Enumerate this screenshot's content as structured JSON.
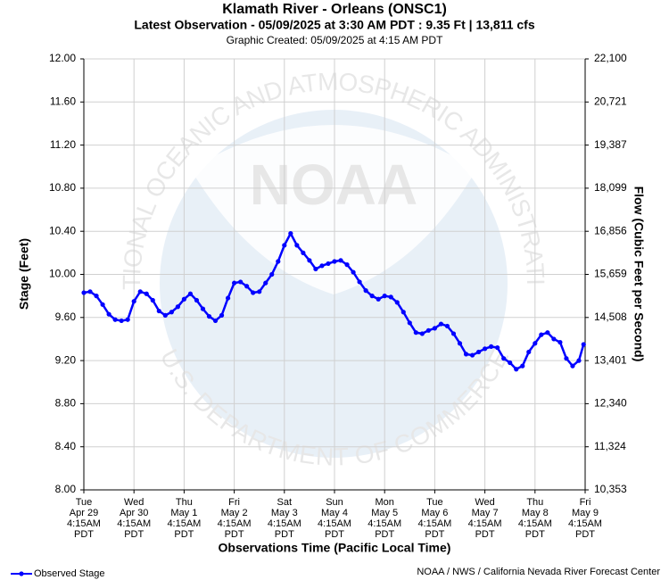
{
  "chart_data": {
    "type": "line",
    "title": "Klamath River - Orleans (ONSC1)",
    "subtitle": "Latest Observation - 05/09/2025 at 3:30 AM PDT : 9.35 Ft | 13,811 cfs",
    "created": "Graphic Created: 05/09/2025 at 4:15 AM PDT",
    "ylabel": "Stage (Feet)",
    "y2label": "Flow (Cubic Feet per Second)",
    "xlabel": "Observations Time (Pacific Local Time)",
    "credit": "NOAA / NWS / California Nevada River Forecast Center",
    "watermark": {
      "logo": "NOAA",
      "top": "NATIONAL OCEANIC AND ATMOSPHERIC ADMINISTRATION",
      "bottom": "U.S. DEPARTMENT OF COMMERCE"
    },
    "grid": true,
    "legend": "bottom-left",
    "ylim": [
      8,
      12
    ],
    "yticks": [
      {
        "value": 8,
        "label": "8.00"
      },
      {
        "value": 8.4,
        "label": "8.40"
      },
      {
        "value": 8.8,
        "label": "8.80"
      },
      {
        "value": 9.2,
        "label": "9.20"
      },
      {
        "value": 9.6,
        "label": "9.60"
      },
      {
        "value": 10,
        "label": "10.00"
      },
      {
        "value": 10.4,
        "label": "10.40"
      },
      {
        "value": 10.8,
        "label": "10.80"
      },
      {
        "value": 11.2,
        "label": "11.20"
      },
      {
        "value": 11.6,
        "label": "11.60"
      },
      {
        "value": 12,
        "label": "12.00"
      }
    ],
    "y2lim": [
      10353,
      22100
    ],
    "y2ticks": [
      {
        "value": 10353,
        "label": "10,353"
      },
      {
        "value": 11324,
        "label": "11,324"
      },
      {
        "value": 12340,
        "label": "12,340"
      },
      {
        "value": 13401,
        "label": "13,401"
      },
      {
        "value": 14508,
        "label": "14,508"
      },
      {
        "value": 15659,
        "label": "15,659"
      },
      {
        "value": 16856,
        "label": "16,856"
      },
      {
        "value": 18099,
        "label": "18,099"
      },
      {
        "value": 19387,
        "label": "19,387"
      },
      {
        "value": 20721,
        "label": "20,721"
      },
      {
        "value": 22100,
        "label": "22,100"
      }
    ],
    "xlim": [
      "2025-04-29T04:15",
      "2025-05-09T04:15"
    ],
    "xticks": [
      {
        "value": "2025-04-29T04:15",
        "label": [
          "Tue",
          "Apr 29",
          "4:15AM",
          "PDT"
        ]
      },
      {
        "value": "2025-04-30T04:15",
        "label": [
          "Wed",
          "Apr 30",
          "4:15AM",
          "PDT"
        ]
      },
      {
        "value": "2025-05-01T04:15",
        "label": [
          "Thu",
          "May 1",
          "4:15AM",
          "PDT"
        ]
      },
      {
        "value": "2025-05-02T04:15",
        "label": [
          "Fri",
          "May 2",
          "4:15AM",
          "PDT"
        ]
      },
      {
        "value": "2025-05-03T04:15",
        "label": [
          "Sat",
          "May 3",
          "4:15AM",
          "PDT"
        ]
      },
      {
        "value": "2025-05-04T04:15",
        "label": [
          "Sun",
          "May 4",
          "4:15AM",
          "PDT"
        ]
      },
      {
        "value": "2025-05-05T04:15",
        "label": [
          "Mon",
          "May 5",
          "4:15AM",
          "PDT"
        ]
      },
      {
        "value": "2025-05-06T04:15",
        "label": [
          "Tue",
          "May 6",
          "4:15AM",
          "PDT"
        ]
      },
      {
        "value": "2025-05-07T04:15",
        "label": [
          "Wed",
          "May 7",
          "4:15AM",
          "PDT"
        ]
      },
      {
        "value": "2025-05-08T04:15",
        "label": [
          "Thu",
          "May 8",
          "4:15AM",
          "PDT"
        ]
      },
      {
        "value": "2025-05-09T04:15",
        "label": [
          "Fri",
          "May 9",
          "4:15AM",
          "PDT"
        ]
      }
    ],
    "x": [
      "2025-04-29T04:15",
      "2025-04-29T07:15",
      "2025-04-29T10:15",
      "2025-04-29T13:15",
      "2025-04-29T16:15",
      "2025-04-29T19:15",
      "2025-04-29T22:15",
      "2025-04-30T01:15",
      "2025-04-30T04:15",
      "2025-04-30T07:15",
      "2025-04-30T10:15",
      "2025-04-30T13:15",
      "2025-04-30T16:15",
      "2025-04-30T19:15",
      "2025-04-30T22:15",
      "2025-05-01T01:15",
      "2025-05-01T04:15",
      "2025-05-01T07:15",
      "2025-05-01T10:15",
      "2025-05-01T13:15",
      "2025-05-01T16:15",
      "2025-05-01T19:15",
      "2025-05-01T22:15",
      "2025-05-02T01:15",
      "2025-05-02T04:15",
      "2025-05-02T07:15",
      "2025-05-02T10:15",
      "2025-05-02T13:15",
      "2025-05-02T16:15",
      "2025-05-02T19:15",
      "2025-05-02T22:15",
      "2025-05-03T01:15",
      "2025-05-03T04:15",
      "2025-05-03T07:15",
      "2025-05-03T10:15",
      "2025-05-03T13:15",
      "2025-05-03T16:15",
      "2025-05-03T19:15",
      "2025-05-03T22:15",
      "2025-05-04T01:15",
      "2025-05-04T04:15",
      "2025-05-04T07:15",
      "2025-05-04T10:15",
      "2025-05-04T13:15",
      "2025-05-04T16:15",
      "2025-05-04T19:15",
      "2025-05-04T22:15",
      "2025-05-05T01:15",
      "2025-05-05T04:15",
      "2025-05-05T07:15",
      "2025-05-05T10:15",
      "2025-05-05T13:15",
      "2025-05-05T16:15",
      "2025-05-05T19:15",
      "2025-05-05T22:15",
      "2025-05-06T01:15",
      "2025-05-06T04:15",
      "2025-05-06T07:15",
      "2025-05-06T10:15",
      "2025-05-06T13:15",
      "2025-05-06T16:15",
      "2025-05-06T19:15",
      "2025-05-06T22:15",
      "2025-05-07T01:15",
      "2025-05-07T04:15",
      "2025-05-07T07:15",
      "2025-05-07T10:15",
      "2025-05-07T13:15",
      "2025-05-07T16:15",
      "2025-05-07T19:15",
      "2025-05-07T22:15",
      "2025-05-08T01:15",
      "2025-05-08T04:15",
      "2025-05-08T07:15",
      "2025-05-08T10:15",
      "2025-05-08T13:15",
      "2025-05-08T16:15",
      "2025-05-08T19:15",
      "2025-05-08T22:15",
      "2025-05-09T01:15",
      "2025-05-09T03:30"
    ],
    "series": [
      {
        "name": "Observed Stage",
        "color": "#0000ff",
        "values": [
          9.83,
          9.84,
          9.8,
          9.72,
          9.63,
          9.58,
          9.57,
          9.58,
          9.75,
          9.84,
          9.82,
          9.76,
          9.66,
          9.62,
          9.65,
          9.7,
          9.77,
          9.82,
          9.76,
          9.68,
          9.61,
          9.57,
          9.62,
          9.78,
          9.92,
          9.93,
          9.89,
          9.83,
          9.84,
          9.92,
          10.0,
          10.12,
          10.27,
          10.38,
          10.27,
          10.2,
          10.13,
          10.05,
          10.08,
          10.1,
          10.12,
          10.13,
          10.09,
          10.02,
          9.93,
          9.85,
          9.8,
          9.77,
          9.8,
          9.79,
          9.74,
          9.65,
          9.55,
          9.46,
          9.45,
          9.48,
          9.5,
          9.54,
          9.52,
          9.45,
          9.36,
          9.26,
          9.25,
          9.28,
          9.31,
          9.33,
          9.32,
          9.22,
          9.18,
          9.12,
          9.15,
          9.28,
          9.36,
          9.44,
          9.46,
          9.4,
          9.37,
          9.22,
          9.15,
          9.2,
          9.35
        ]
      }
    ]
  }
}
